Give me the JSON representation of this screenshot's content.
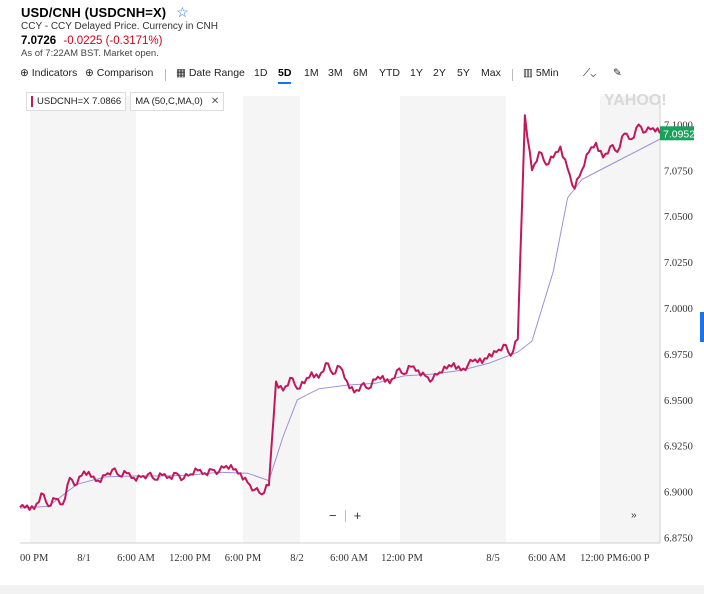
{
  "header": {
    "title": "USD/CNH (USDCNH=X)",
    "subtitle": "CCY - CCY Delayed Price. Currency in CNH",
    "price": "7.0726",
    "change": "-0.0225 (-0.3171%)",
    "as_of": "As of 7:22AM BST. Market open."
  },
  "toolbar": {
    "indicators": "Indicators",
    "comparison": "Comparison",
    "date_range": "Date Range",
    "ranges": [
      "1D",
      "5D",
      "1M",
      "3M",
      "6M",
      "YTD",
      "1Y",
      "2Y",
      "5Y",
      "Max"
    ],
    "active_range": "5D",
    "interval": "5Min"
  },
  "chips": {
    "symbol": "USDCNH=X 7.0866",
    "ma": "MA (50,C,MA,0)"
  },
  "watermark": "YAHOO!",
  "controls": {
    "zoom_out": "−",
    "zoom_in": "+",
    "more": "»"
  },
  "colors": {
    "price_line": "#c2185b",
    "ma_line": "#9e8fd8",
    "last_badge": "#1aa05a"
  },
  "chart_data": {
    "type": "line",
    "x_ticks": [
      "00 PM",
      "8/1",
      "6:00 AM",
      "12:00 PM",
      "6:00 PM",
      "8/2",
      "6:00 AM",
      "12:00 PM",
      "8/5",
      "6:00 AM",
      "12:00 PM",
      "6:00 P"
    ],
    "y_ticks": [
      "7.1000",
      "7.0750",
      "7.0500",
      "7.0250",
      "7.0000",
      "6.9750",
      "6.9500",
      "6.9250",
      "6.9000",
      "6.8750"
    ],
    "ylim": [
      6.872,
      7.1155
    ],
    "last_value": "7.0952",
    "grid": false,
    "series": [
      {
        "name": "USDCNH=X",
        "points": [
          [
            0,
            6.8915
          ],
          [
            1,
            6.8925
          ],
          [
            2,
            6.8905
          ],
          [
            3,
            6.899
          ],
          [
            4,
            6.892
          ],
          [
            5,
            6.896
          ],
          [
            6,
            6.893
          ],
          [
            7,
            6.9075
          ],
          [
            8,
            6.904
          ],
          [
            9,
            6.911
          ],
          [
            10,
            6.908
          ],
          [
            11,
            6.906
          ],
          [
            12,
            6.909
          ],
          [
            13,
            6.912
          ],
          [
            14,
            6.9085
          ],
          [
            15,
            6.91
          ],
          [
            16,
            6.9075
          ],
          [
            17,
            6.908
          ],
          [
            18,
            6.9095
          ],
          [
            19,
            6.9065
          ],
          [
            20,
            6.909
          ],
          [
            21,
            6.908
          ],
          [
            22,
            6.91
          ],
          [
            23,
            6.907
          ],
          [
            24,
            6.9095
          ],
          [
            25,
            6.9115
          ],
          [
            26,
            6.91
          ],
          [
            27,
            6.912
          ],
          [
            28,
            6.911
          ],
          [
            29,
            6.914
          ],
          [
            30,
            6.912
          ],
          [
            31,
            6.91
          ],
          [
            32,
            6.905
          ],
          [
            33,
            6.901
          ],
          [
            34,
            6.8985
          ],
          [
            35,
            6.9035
          ],
          [
            36,
            6.96
          ],
          [
            37,
            6.955
          ],
          [
            38,
            6.962
          ],
          [
            39,
            6.956
          ],
          [
            40,
            6.959
          ],
          [
            41,
            6.965
          ],
          [
            42,
            6.962
          ],
          [
            43,
            6.97
          ],
          [
            44,
            6.964
          ],
          [
            45,
            6.968
          ],
          [
            46,
            6.96
          ],
          [
            47,
            6.954
          ],
          [
            48,
            6.958
          ],
          [
            49,
            6.956
          ],
          [
            50,
            6.961
          ],
          [
            51,
            6.963
          ],
          [
            52,
            6.959
          ],
          [
            53,
            6.966
          ],
          [
            54,
            6.964
          ],
          [
            55,
            6.968
          ],
          [
            56,
            6.966
          ],
          [
            57,
            6.963
          ],
          [
            58,
            6.961
          ],
          [
            59,
            6.965
          ],
          [
            60,
            6.967
          ],
          [
            61,
            6.97
          ],
          [
            62,
            6.966
          ],
          [
            63,
            6.969
          ],
          [
            64,
            6.972
          ],
          [
            65,
            6.97
          ],
          [
            66,
            6.975
          ],
          [
            67,
            6.976
          ],
          [
            68,
            6.98
          ],
          [
            69,
            6.974
          ],
          [
            70,
            6.983
          ],
          [
            71,
            7.105
          ],
          [
            72,
            7.075
          ],
          [
            73,
            7.085
          ],
          [
            74,
            7.078
          ],
          [
            75,
            7.082
          ],
          [
            76,
            7.088
          ],
          [
            77,
            7.076
          ],
          [
            78,
            7.065
          ],
          [
            79,
            7.075
          ],
          [
            80,
            7.085
          ],
          [
            81,
            7.09
          ],
          [
            82,
            7.082
          ],
          [
            83,
            7.088
          ],
          [
            84,
            7.085
          ],
          [
            85,
            7.095
          ],
          [
            86,
            7.092
          ],
          [
            87,
            7.1
          ],
          [
            88,
            7.096
          ],
          [
            89,
            7.098
          ],
          [
            90,
            7.0952
          ]
        ]
      },
      {
        "name": "MA (50,C,MA,0)",
        "points": [
          [
            0,
            6.891
          ],
          [
            4,
            6.892
          ],
          [
            8,
            6.904
          ],
          [
            12,
            6.908
          ],
          [
            16,
            6.9085
          ],
          [
            20,
            6.9085
          ],
          [
            24,
            6.909
          ],
          [
            28,
            6.9105
          ],
          [
            32,
            6.91
          ],
          [
            35,
            6.906
          ],
          [
            37,
            6.93
          ],
          [
            39,
            6.95
          ],
          [
            42,
            6.956
          ],
          [
            46,
            6.958
          ],
          [
            50,
            6.959
          ],
          [
            54,
            6.963
          ],
          [
            58,
            6.964
          ],
          [
            62,
            6.966
          ],
          [
            66,
            6.97
          ],
          [
            70,
            6.976
          ],
          [
            72,
            6.982
          ],
          [
            75,
            7.02
          ],
          [
            77,
            7.06
          ],
          [
            79,
            7.07
          ],
          [
            82,
            7.076
          ],
          [
            85,
            7.082
          ],
          [
            88,
            7.088
          ],
          [
            90,
            7.092
          ]
        ]
      }
    ]
  }
}
